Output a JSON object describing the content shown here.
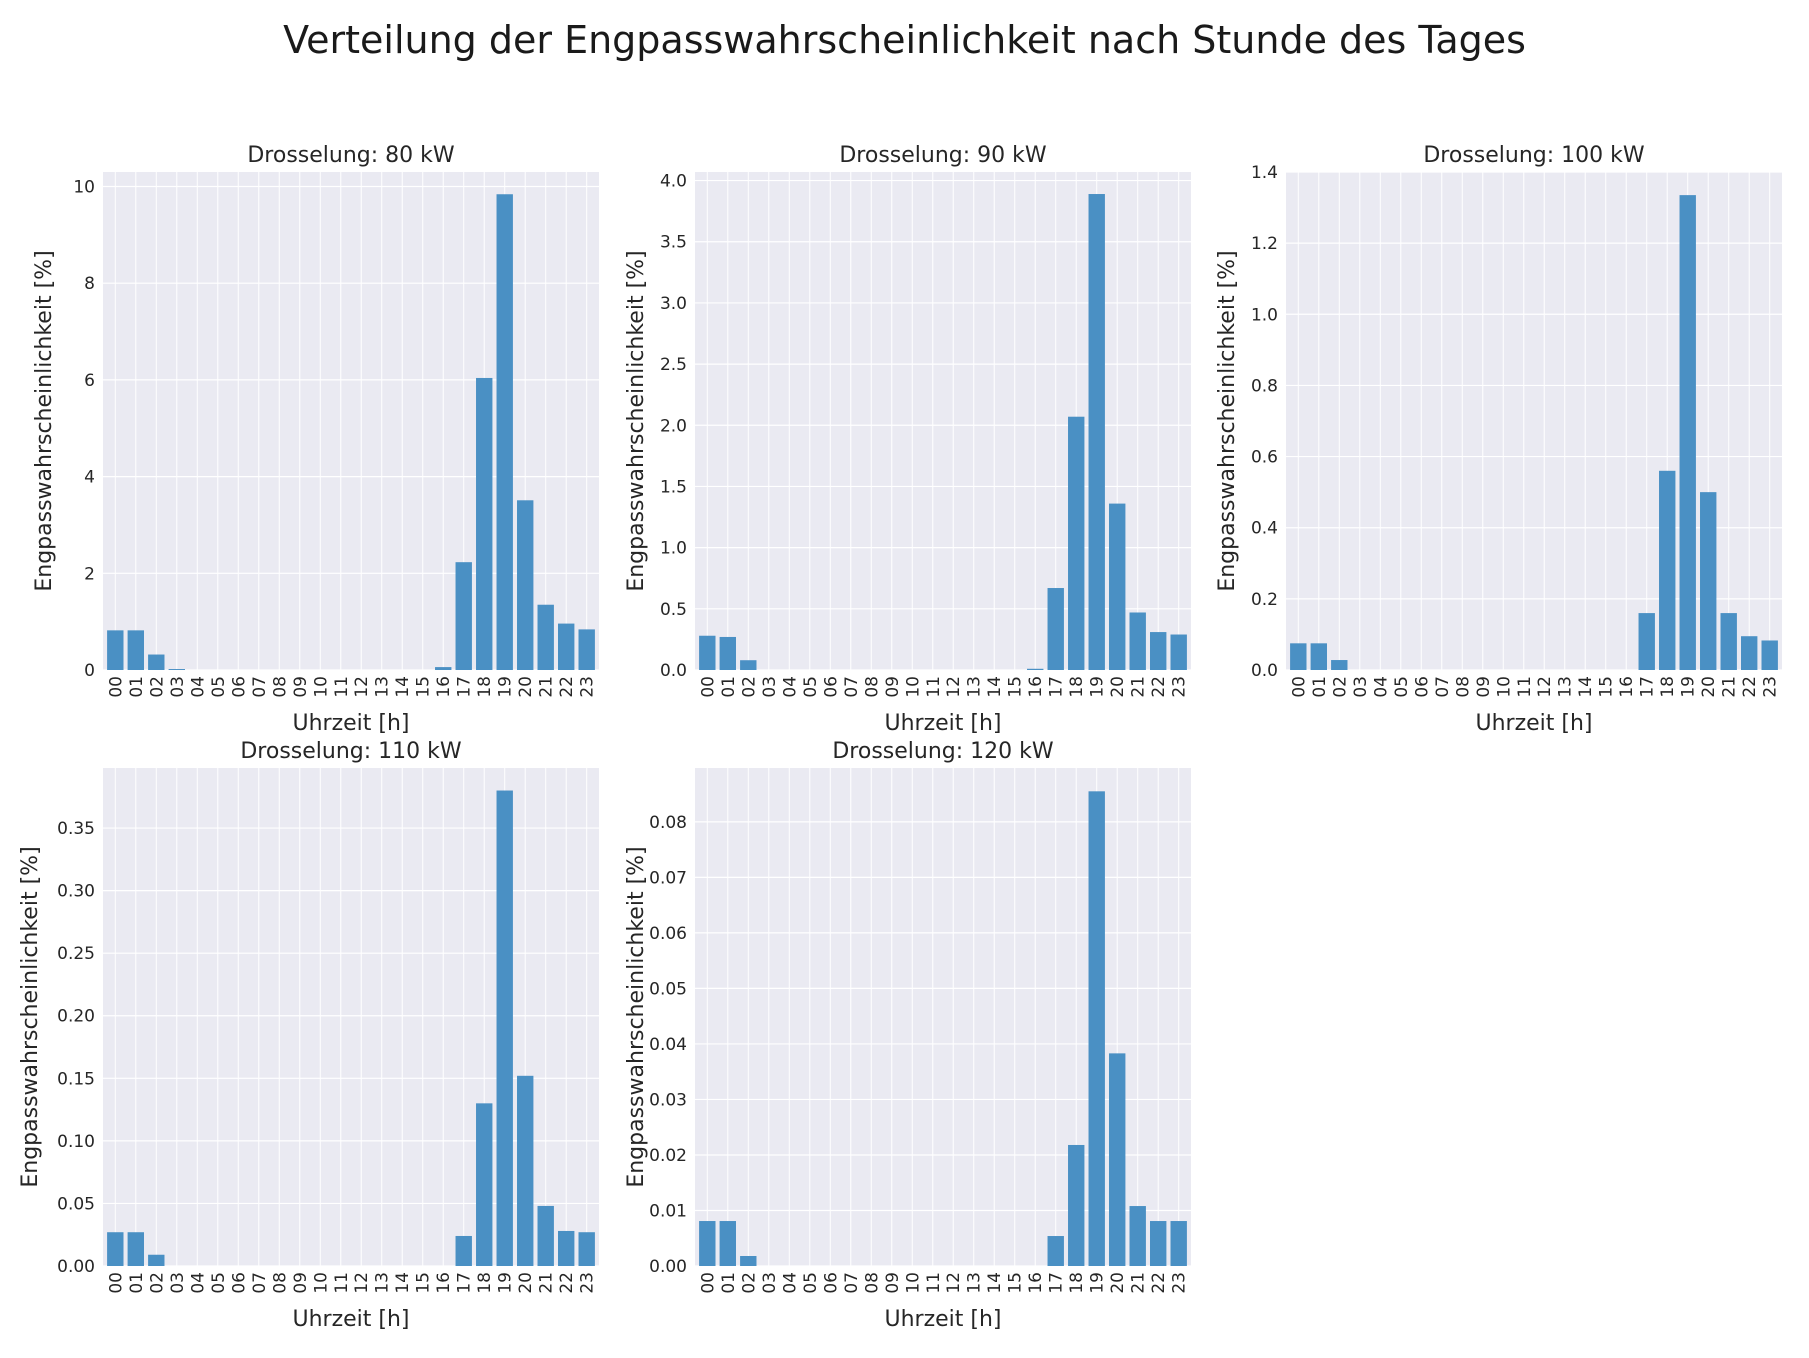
{
  "title": "Verteilung der Engpasswahrscheinlichkeit nach Stunde des Tages",
  "colors": {
    "bar": "#4a90c4",
    "panel_bg": "#eaeaf2",
    "grid": "#ffffff"
  },
  "chart_data": [
    {
      "type": "bar",
      "title": "Drosselung: 80 kW",
      "xlabel": "Uhrzeit [h]",
      "ylabel": "Engpasswahrscheinlichkeit [%]",
      "ylim": [
        0,
        10.3
      ],
      "yticks": [
        0,
        2,
        4,
        6,
        8,
        10
      ],
      "ytick_labels": [
        "0",
        "2",
        "4",
        "6",
        "8",
        "10"
      ],
      "categories": [
        "00",
        "01",
        "02",
        "03",
        "04",
        "05",
        "06",
        "07",
        "08",
        "09",
        "10",
        "11",
        "12",
        "13",
        "14",
        "15",
        "16",
        "17",
        "18",
        "19",
        "20",
        "21",
        "22",
        "23"
      ],
      "values": [
        0.82,
        0.82,
        0.32,
        0.02,
        0,
        0,
        0,
        0,
        0,
        0,
        0,
        0,
        0,
        0,
        0,
        0,
        0.06,
        2.23,
        6.04,
        9.84,
        3.51,
        1.35,
        0.96,
        0.84
      ],
      "grid": true
    },
    {
      "type": "bar",
      "title": "Drosselung: 90 kW",
      "xlabel": "Uhrzeit [h]",
      "ylabel": "Engpasswahrscheinlichkeit [%]",
      "ylim": [
        0,
        4.07
      ],
      "yticks": [
        0,
        0.5,
        1.0,
        1.5,
        2.0,
        2.5,
        3.0,
        3.5,
        4.0
      ],
      "ytick_labels": [
        "0.0",
        "0.5",
        "1.0",
        "1.5",
        "2.0",
        "2.5",
        "3.0",
        "3.5",
        "4.0"
      ],
      "categories": [
        "00",
        "01",
        "02",
        "03",
        "04",
        "05",
        "06",
        "07",
        "08",
        "09",
        "10",
        "11",
        "12",
        "13",
        "14",
        "15",
        "16",
        "17",
        "18",
        "19",
        "20",
        "21",
        "22",
        "23"
      ],
      "values": [
        0.28,
        0.27,
        0.08,
        0,
        0,
        0,
        0,
        0,
        0,
        0,
        0,
        0,
        0,
        0,
        0,
        0,
        0.01,
        0.67,
        2.07,
        3.89,
        1.36,
        0.47,
        0.31,
        0.29
      ],
      "grid": true
    },
    {
      "type": "bar",
      "title": "Drosselung: 100 kW",
      "xlabel": "Uhrzeit [h]",
      "ylabel": "Engpasswahrscheinlichkeit [%]",
      "ylim": [
        0,
        1.4
      ],
      "yticks": [
        0,
        0.2,
        0.4,
        0.6,
        0.8,
        1.0,
        1.2,
        1.4
      ],
      "ytick_labels": [
        "0.0",
        "0.2",
        "0.4",
        "0.6",
        "0.8",
        "1.0",
        "1.2",
        "1.4"
      ],
      "categories": [
        "00",
        "01",
        "02",
        "03",
        "04",
        "05",
        "06",
        "07",
        "08",
        "09",
        "10",
        "11",
        "12",
        "13",
        "14",
        "15",
        "16",
        "17",
        "18",
        "19",
        "20",
        "21",
        "22",
        "23"
      ],
      "values": [
        0.075,
        0.075,
        0.028,
        0,
        0,
        0,
        0,
        0,
        0,
        0,
        0,
        0,
        0,
        0,
        0,
        0,
        0,
        0.16,
        0.56,
        1.335,
        0.5,
        0.16,
        0.095,
        0.083
      ],
      "grid": true
    },
    {
      "type": "bar",
      "title": "Drosselung: 110 kW",
      "xlabel": "Uhrzeit [h]",
      "ylabel": "Engpasswahrscheinlichkeit [%]",
      "ylim": [
        0,
        0.398
      ],
      "yticks": [
        0,
        0.05,
        0.1,
        0.15,
        0.2,
        0.25,
        0.3,
        0.35
      ],
      "ytick_labels": [
        "0.00",
        "0.05",
        "0.10",
        "0.15",
        "0.20",
        "0.25",
        "0.30",
        "0.35"
      ],
      "categories": [
        "00",
        "01",
        "02",
        "03",
        "04",
        "05",
        "06",
        "07",
        "08",
        "09",
        "10",
        "11",
        "12",
        "13",
        "14",
        "15",
        "16",
        "17",
        "18",
        "19",
        "20",
        "21",
        "22",
        "23"
      ],
      "values": [
        0.027,
        0.027,
        0.009,
        0,
        0,
        0,
        0,
        0,
        0,
        0,
        0,
        0,
        0,
        0,
        0,
        0,
        0,
        0.024,
        0.13,
        0.38,
        0.152,
        0.048,
        0.028,
        0.027
      ],
      "grid": true
    },
    {
      "type": "bar",
      "title": "Drosselung: 120 kW",
      "xlabel": "Uhrzeit [h]",
      "ylabel": "Engpasswahrscheinlichkeit [%]",
      "ylim": [
        0,
        0.0897
      ],
      "yticks": [
        0,
        0.01,
        0.02,
        0.03,
        0.04,
        0.05,
        0.06,
        0.07,
        0.08
      ],
      "ytick_labels": [
        "0.00",
        "0.01",
        "0.02",
        "0.03",
        "0.04",
        "0.05",
        "0.06",
        "0.07",
        "0.08"
      ],
      "categories": [
        "00",
        "01",
        "02",
        "03",
        "04",
        "05",
        "06",
        "07",
        "08",
        "09",
        "10",
        "11",
        "12",
        "13",
        "14",
        "15",
        "16",
        "17",
        "18",
        "19",
        "20",
        "21",
        "22",
        "23"
      ],
      "values": [
        0.0081,
        0.0081,
        0.0018,
        0,
        0,
        0,
        0,
        0,
        0,
        0,
        0,
        0,
        0,
        0,
        0,
        0,
        0,
        0.0054,
        0.0218,
        0.0855,
        0.0383,
        0.0108,
        0.0081,
        0.0081
      ],
      "grid": true
    }
  ]
}
